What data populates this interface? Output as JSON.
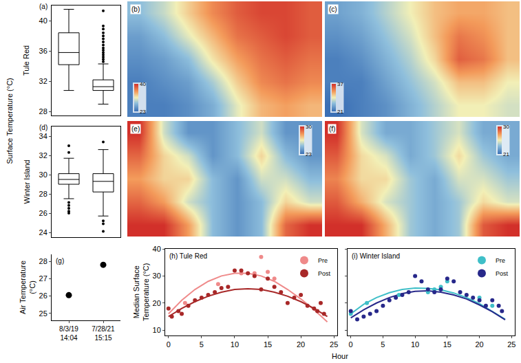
{
  "shared_y_label": "Surface Temperature (°C)",
  "shared_x_label": "Hour",
  "chart_data": [
    {
      "type": "box",
      "title": "(a)",
      "y_label": "Tule Red",
      "ylim": [
        27.5,
        42
      ],
      "yticks": [
        28,
        32,
        36,
        40
      ],
      "tick_labels": "y",
      "boxes": [
        {
          "lower": 30.8,
          "q1": 34.2,
          "median": 35.8,
          "q3": 38.4,
          "upper": 41.5,
          "outliers": []
        },
        {
          "lower": 29.0,
          "q1": 30.8,
          "median": 31.3,
          "q3": 32.2,
          "upper": 34.3,
          "outliers": [
            34.6,
            34.9,
            35.2,
            35.5,
            35.8,
            36.1,
            36.4,
            36.8,
            37.2,
            37.6,
            38,
            38.4,
            38.9,
            39.3,
            41.3
          ]
        }
      ]
    },
    {
      "type": "heatmap",
      "title": "(b)",
      "tick_labels": false,
      "colorbar_range": [
        23,
        40
      ],
      "colorbar_ticks": [
        23,
        40
      ],
      "cells": [
        [
          28,
          30,
          33,
          36,
          38,
          39,
          39,
          38
        ],
        [
          26,
          28,
          31,
          34,
          37,
          38,
          39,
          38
        ],
        [
          25,
          26,
          28,
          32,
          35,
          37,
          38,
          37
        ],
        [
          24,
          25,
          26,
          29,
          33,
          36,
          37,
          36
        ],
        [
          24,
          24,
          25,
          27,
          31,
          34,
          35,
          34
        ]
      ]
    },
    {
      "type": "heatmap",
      "title": "(c)",
      "tick_labels": false,
      "colorbar_range": [
        21,
        37
      ],
      "colorbar_ticks": [
        21,
        37
      ],
      "cells": [
        [
          24,
          25,
          27,
          29,
          31,
          32,
          32,
          31
        ],
        [
          23,
          24,
          26,
          28,
          31,
          34,
          33,
          31
        ],
        [
          22,
          23,
          25,
          27,
          30,
          35,
          34,
          31
        ],
        [
          22,
          22,
          24,
          26,
          28,
          31,
          31,
          29
        ],
        [
          21,
          22,
          23,
          25,
          27,
          29,
          29,
          28
        ]
      ]
    },
    {
      "type": "box",
      "title": "(d)",
      "y_label": "Winter Island",
      "ylim": [
        23.5,
        35
      ],
      "yticks": [
        24,
        26,
        28,
        30,
        32,
        34
      ],
      "tick_labels": "y",
      "boxes": [
        {
          "lower": 27.5,
          "q1": 29.0,
          "median": 29.5,
          "q3": 30.1,
          "upper": 31.7,
          "outliers": [
            32.3,
            33.0,
            27.1,
            26.8,
            26.5,
            26.2,
            26.0
          ]
        },
        {
          "lower": 25.7,
          "q1": 28.2,
          "median": 29.3,
          "q3": 30.1,
          "upper": 32.6,
          "outliers": [
            33.4,
            25.2,
            24.9,
            24.1
          ]
        }
      ]
    },
    {
      "type": "heatmap",
      "title": "(e)",
      "tick_labels": false,
      "colorbar_range": [
        23,
        30
      ],
      "colorbar_ticks": [
        23,
        30
      ],
      "cells": [
        [
          30,
          26,
          24,
          24,
          25,
          26,
          24,
          24
        ],
        [
          29,
          27,
          26,
          24,
          25,
          27,
          25,
          24
        ],
        [
          28,
          27,
          27,
          25,
          24,
          26,
          26,
          25
        ],
        [
          29,
          28,
          26,
          25,
          24,
          25,
          27,
          26
        ],
        [
          30,
          30,
          28,
          25,
          24,
          25,
          29,
          30
        ]
      ]
    },
    {
      "type": "heatmap",
      "title": "(f)",
      "tick_labels": false,
      "colorbar_range": [
        21,
        30
      ],
      "colorbar_ticks": [
        21,
        30
      ],
      "cells": [
        [
          30,
          25,
          23,
          23,
          24,
          25,
          23,
          23
        ],
        [
          29,
          26,
          25,
          23,
          24,
          26,
          24,
          23
        ],
        [
          28,
          26,
          26,
          24,
          23,
          25,
          25,
          24
        ],
        [
          29,
          27,
          25,
          24,
          23,
          24,
          26,
          25
        ],
        [
          30,
          30,
          27,
          24,
          23,
          24,
          29,
          30
        ]
      ]
    },
    {
      "type": "scatter",
      "title": "(g)",
      "y_label": "Air Temperature (°C)",
      "categories": [
        "8/3/19 14:04",
        "7/28/21 15:15"
      ],
      "values": [
        26.05,
        27.8
      ],
      "color": "#000000",
      "ylim": [
        24.6,
        28.4
      ],
      "yticks": [
        25,
        26,
        27,
        28
      ]
    },
    {
      "type": "scatter",
      "title": "(h) Tule Red",
      "y_label": "Median Surface Temperature (°C)",
      "xlim": [
        -0.5,
        25.5
      ],
      "xticks": [
        0,
        5,
        10,
        15,
        20,
        25
      ],
      "ylim": [
        8,
        40
      ],
      "yticks": [
        10,
        20,
        30,
        40
      ],
      "legend": "top right",
      "series": [
        {
          "name": "Pre",
          "color": "#ef8a8a",
          "x": [
            2.5,
            7.5,
            11,
            13,
            14,
            15,
            16
          ],
          "values": [
            20,
            27,
            31,
            31,
            37,
            31.5,
            29
          ],
          "fit": {
            "x": [
              0,
              2,
              4,
              6,
              8,
              10,
              12,
              14,
              16,
              18,
              20,
              22,
              24
            ],
            "values": [
              16,
              21,
              25,
              28,
              30,
              31,
              31,
              30,
              28,
              25,
              21.5,
              17.5,
              13
            ]
          }
        },
        {
          "name": "Post",
          "color": "#a82828",
          "x": [
            0,
            0.5,
            1.5,
            2,
            3,
            4,
            5,
            6,
            7,
            8,
            9,
            10,
            11,
            12,
            13,
            14,
            15,
            16,
            17,
            18,
            19,
            20,
            21,
            22,
            22.5,
            23,
            23.5
          ],
          "values": [
            18,
            15,
            17,
            16,
            19,
            21,
            22,
            23,
            24,
            25.5,
            26,
            32,
            32,
            31,
            30,
            25,
            29,
            26,
            24,
            20,
            22,
            23,
            19,
            18,
            17,
            20,
            16
          ],
          "fit": {
            "x": [
              0,
              2,
              4,
              6,
              8,
              10,
              12,
              14,
              16,
              18,
              20,
              22,
              24
            ],
            "values": [
              15,
              18,
              20.5,
              22.5,
              24,
              25,
              25.3,
              25,
              24,
              22.5,
              20.5,
              18,
              15
            ]
          }
        }
      ]
    },
    {
      "type": "scatter",
      "title": "(i) Winter Island",
      "xlim": [
        -0.5,
        25.5
      ],
      "xticks": [
        0,
        5,
        10,
        15,
        20,
        25
      ],
      "ylim": [
        8,
        40
      ],
      "yticks": [
        10,
        20,
        30,
        40
      ],
      "legend": "top right",
      "tick_labels": "x",
      "series": [
        {
          "name": "Pre",
          "color": "#3fbfc8",
          "x": [
            0,
            2.5,
            7.5,
            12,
            13,
            14,
            15,
            20,
            22
          ],
          "values": [
            16,
            20,
            23,
            24,
            25,
            26,
            28,
            22,
            19
          ],
          "fit": {
            "x": [
              0,
              2,
              4,
              6,
              8,
              10,
              12,
              14,
              16,
              18,
              20,
              22,
              24
            ],
            "values": [
              16,
              19.5,
              22,
              23.8,
              25,
              25.5,
              25.4,
              24.9,
              23.7,
              22,
              19.8,
              17,
              14
            ]
          }
        },
        {
          "name": "Post",
          "color": "#27288a",
          "x": [
            0,
            1,
            2,
            3,
            4,
            5,
            6,
            7,
            8,
            9,
            10,
            11,
            12,
            13,
            14,
            15,
            16,
            17,
            18,
            19,
            20,
            21,
            22,
            23,
            23.5
          ],
          "values": [
            17,
            14,
            15,
            16,
            17,
            19,
            21,
            22,
            23,
            24,
            30,
            28,
            25,
            24,
            25,
            29,
            28,
            24,
            23,
            22,
            21,
            19,
            21,
            19,
            17
          ],
          "fit": {
            "x": [
              0,
              2,
              4,
              6,
              8,
              10,
              12,
              14,
              16,
              18,
              20,
              22,
              24
            ],
            "values": [
              14.5,
              17.5,
              20,
              22,
              23.5,
              24.3,
              24.5,
              24,
              23,
              21.5,
              19.3,
              16.8,
              13.8
            ]
          }
        }
      ]
    }
  ]
}
